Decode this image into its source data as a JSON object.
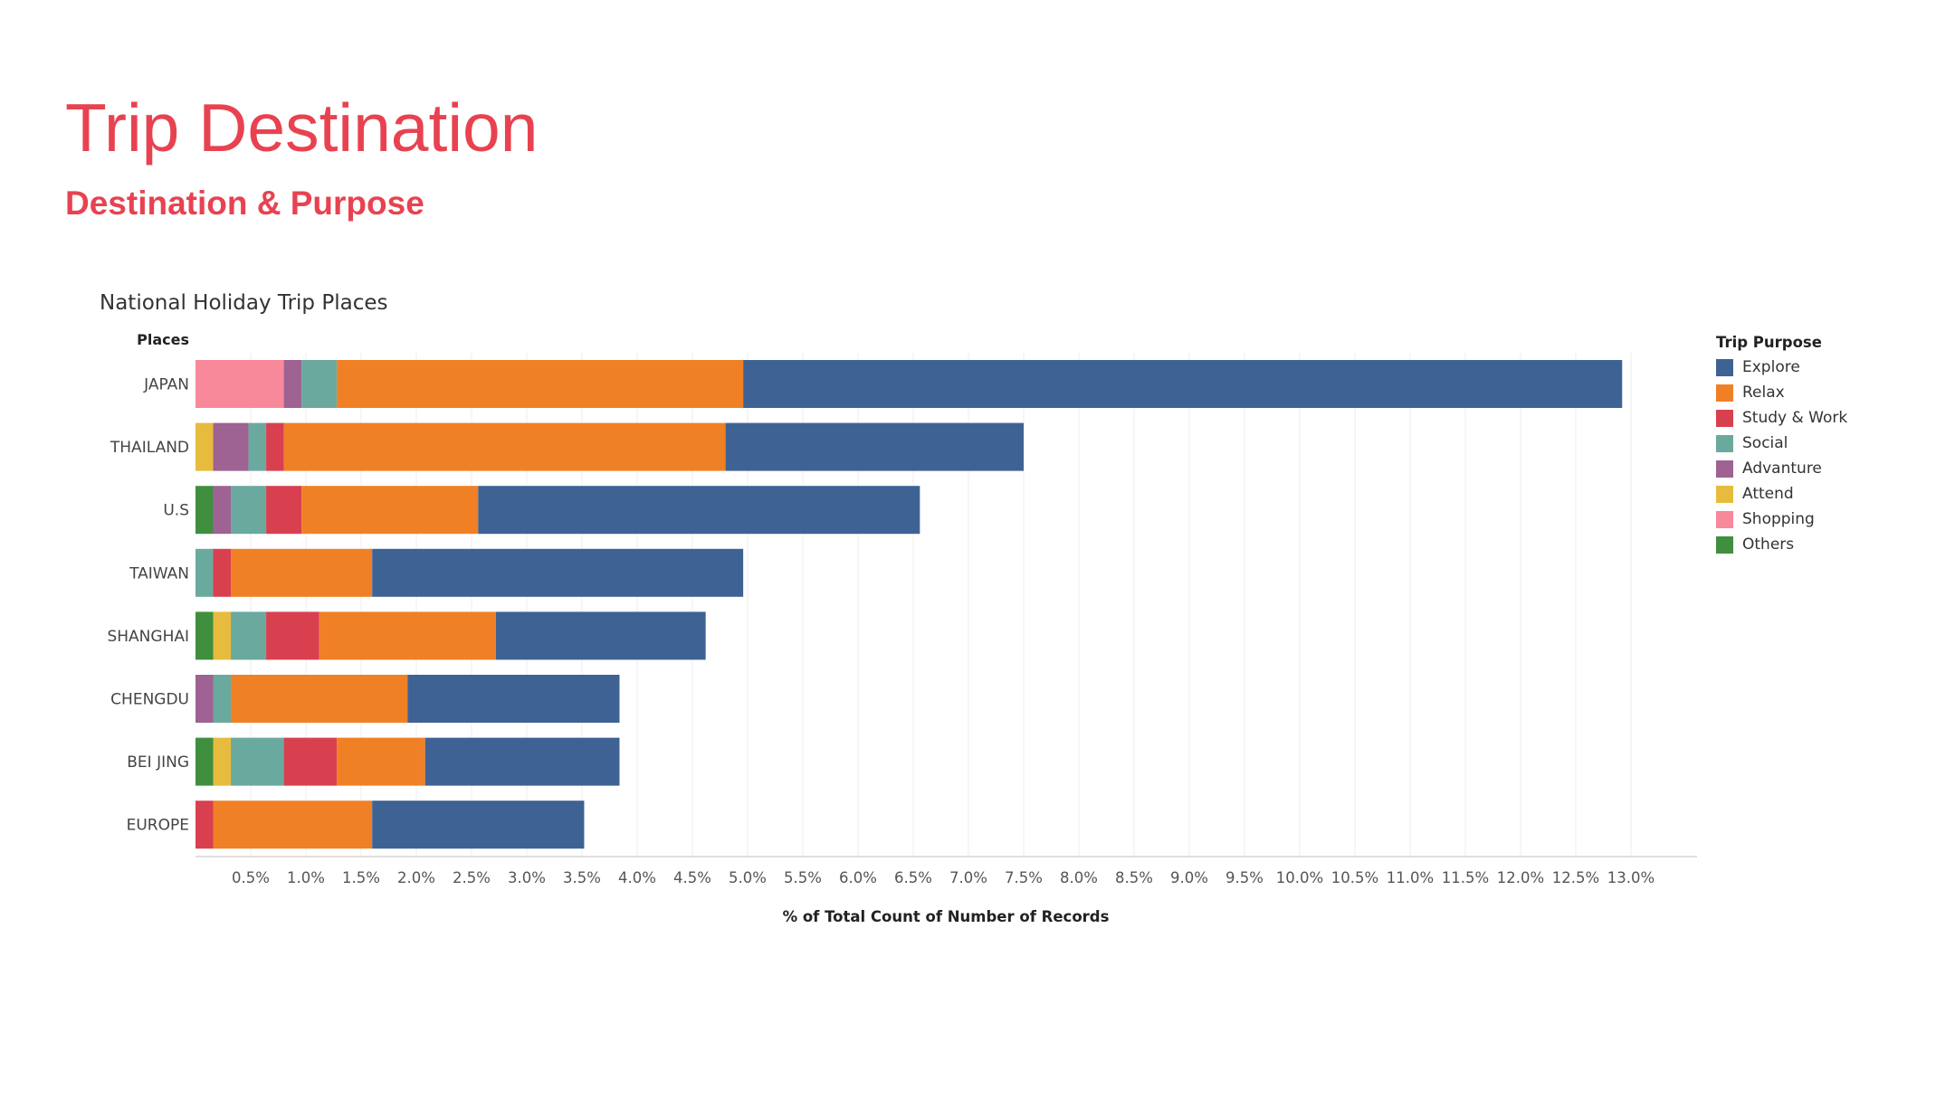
{
  "page": {
    "title": "Trip Destination",
    "subtitle": "Destination & Purpose"
  },
  "chart_data": {
    "type": "bar",
    "orientation": "horizontal",
    "stacked": true,
    "title": "National Holiday Trip Places",
    "row_header": "Places",
    "xlabel": "% of Total Count of Number of Records",
    "x_tick_labels": [
      "0.5%",
      "1.0%",
      "1.5%",
      "2.0%",
      "2.5%",
      "3.0%",
      "3.5%",
      "4.0%",
      "4.5%",
      "5.0%",
      "5.5%",
      "6.0%",
      "6.5%",
      "7.0%",
      "7.5%",
      "8.0%",
      "8.5%",
      "9.0%",
      "9.5%",
      "10.0%",
      "10.5%",
      "11.0%",
      "11.5%",
      "12.0%",
      "12.5%",
      "13.0%"
    ],
    "xlim": [
      0,
      13.6
    ],
    "grid": true,
    "legend": {
      "title": "Trip Purpose",
      "position": "right"
    },
    "categories": [
      "JAPAN",
      "THAILAND",
      "U.S",
      "TAIWAN",
      "SHANGHAI",
      "CHENGDU",
      "BEI JING",
      "EUROPE"
    ],
    "series": [
      {
        "name": "Others",
        "color": "#3f8f3f",
        "values": [
          0,
          0,
          0.16,
          0,
          0.16,
          0,
          0.16,
          0
        ]
      },
      {
        "name": "Attend",
        "color": "#e7bb3d",
        "values": [
          0,
          0.16,
          0,
          0,
          0.16,
          0,
          0.16,
          0
        ]
      },
      {
        "name": "Shopping",
        "color": "#f7899a",
        "values": [
          0.8,
          0,
          0,
          0,
          0,
          0,
          0,
          0
        ]
      },
      {
        "name": "Advanture",
        "color": "#9e6293",
        "values": [
          0.16,
          0.32,
          0.16,
          0,
          0,
          0.16,
          0,
          0
        ]
      },
      {
        "name": "Social",
        "color": "#6aa99e",
        "values": [
          0.32,
          0.16,
          0.32,
          0.16,
          0.32,
          0.16,
          0.48,
          0
        ]
      },
      {
        "name": "Study & Work",
        "color": "#d84050",
        "values": [
          0,
          0.16,
          0.32,
          0.16,
          0.48,
          0,
          0.48,
          0.16
        ]
      },
      {
        "name": "Relax",
        "color": "#f08025",
        "values": [
          3.68,
          4.0,
          1.6,
          1.28,
          1.6,
          1.6,
          0.8,
          1.44
        ]
      },
      {
        "name": "Explore",
        "color": "#3f6295",
        "values": [
          7.96,
          2.7,
          4.0,
          3.36,
          1.9,
          1.92,
          1.76,
          1.92
        ]
      }
    ],
    "legend_order": [
      "Explore",
      "Relax",
      "Study & Work",
      "Social",
      "Advanture",
      "Attend",
      "Shopping",
      "Others"
    ]
  }
}
